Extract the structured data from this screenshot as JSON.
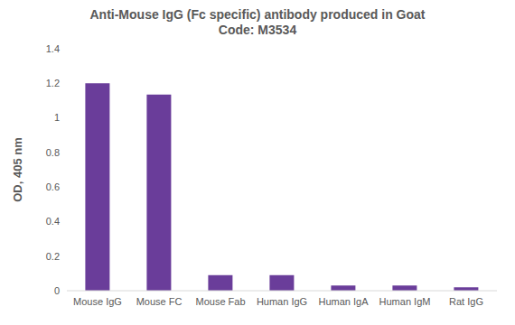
{
  "chart_data": {
    "type": "bar",
    "title": "Anti-Mouse IgG (Fc specific) antibody produced in Goat",
    "subtitle": "Code: M3534",
    "y_label": "OD, 405 nm",
    "categories": [
      "Mouse IgG",
      "Mouse FC",
      "Mouse Fab",
      "Human IgG",
      "Human IgA",
      "Human IgM",
      "Rat IgG"
    ],
    "values": [
      1.2,
      1.135,
      0.09,
      0.09,
      0.03,
      0.03,
      0.02
    ],
    "color": "#6a3d9a",
    "ylim": [
      0,
      1.4
    ],
    "yticks": [
      0,
      0.2,
      0.4,
      0.6,
      0.8,
      1,
      1.2,
      1.4
    ],
    "grid": false
  }
}
